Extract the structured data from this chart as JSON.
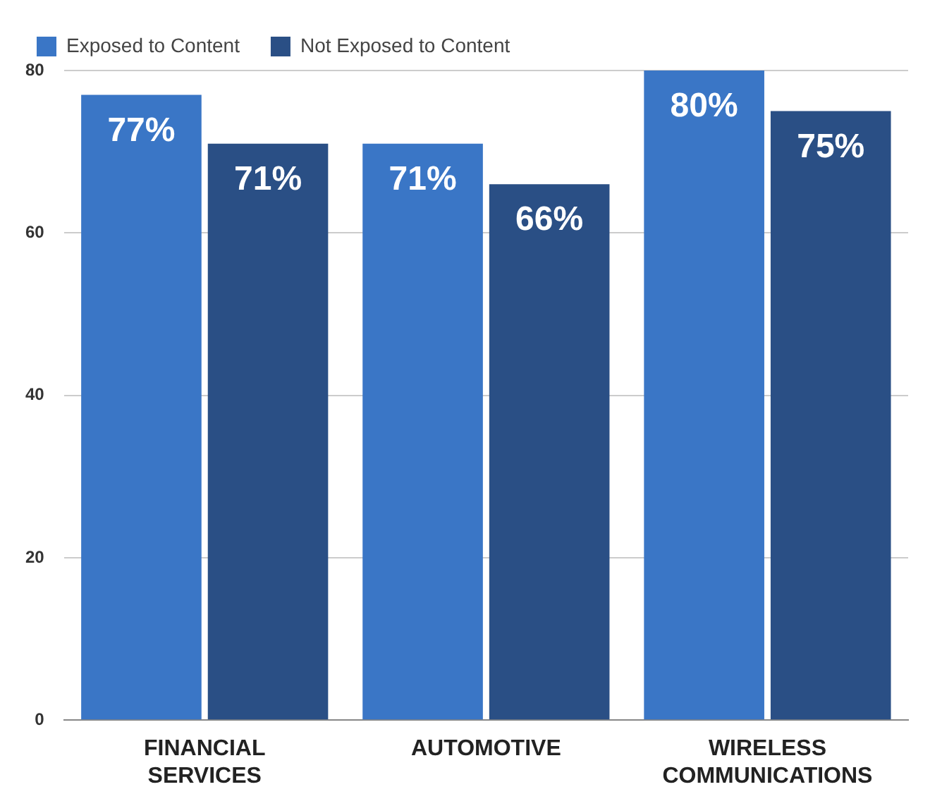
{
  "chart_data": {
    "type": "bar",
    "categories": [
      "FINANCIAL SERVICES",
      "AUTOMOTIVE",
      "WIRELESS COMMUNICATIONS"
    ],
    "series": [
      {
        "name": "Exposed to Content",
        "color": "#3a76c6",
        "values": [
          77,
          71,
          80
        ],
        "value_labels": [
          "77%",
          "71%",
          "80%"
        ]
      },
      {
        "name": "Not Exposed to Content",
        "color": "#2a4f85",
        "values": [
          71,
          66,
          75
        ],
        "value_labels": [
          "71%",
          "66%",
          "75%"
        ]
      }
    ],
    "ylim": [
      0,
      80
    ],
    "yticks": [
      0,
      20,
      40,
      60,
      80
    ],
    "grid": "y",
    "legend": "top left"
  }
}
